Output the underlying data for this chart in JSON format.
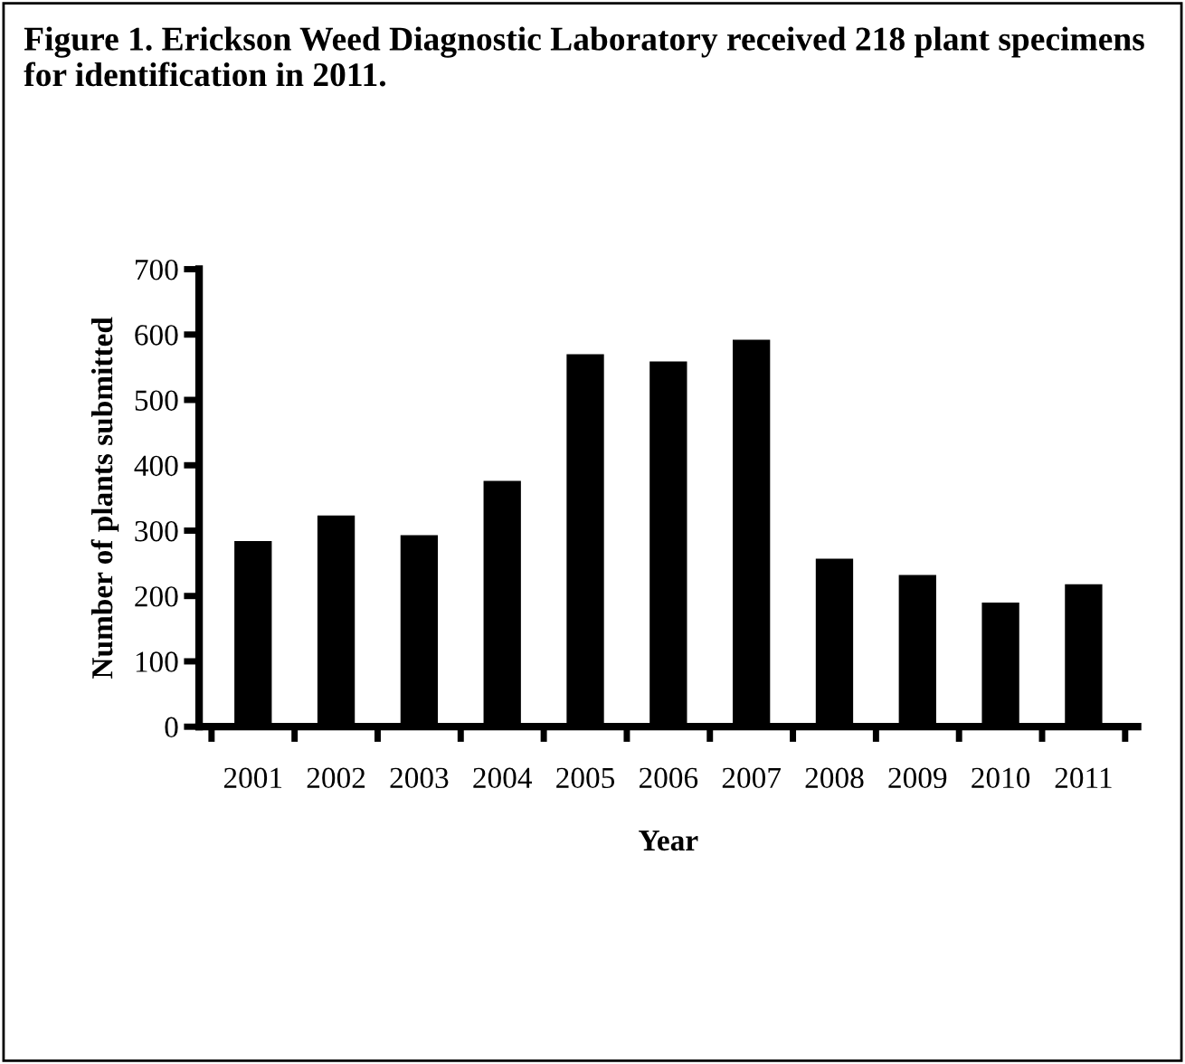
{
  "chart_data": {
    "type": "bar",
    "title": "Figure 1. Erickson Weed Diagnostic Laboratory received 218 plant specimens for identification in 2011.",
    "xlabel": "Year",
    "ylabel": "Number of plants submitted",
    "categories": [
      "2001",
      "2002",
      "2003",
      "2004",
      "2005",
      "2006",
      "2007",
      "2008",
      "2009",
      "2010",
      "2011"
    ],
    "values": [
      284,
      323,
      293,
      376,
      570,
      559,
      592,
      257,
      232,
      190,
      218
    ],
    "color": "#000000",
    "ylim": [
      0,
      700
    ],
    "yticks": [
      0,
      100,
      200,
      300,
      400,
      500,
      600,
      700
    ],
    "grid": false,
    "legend": false
  }
}
